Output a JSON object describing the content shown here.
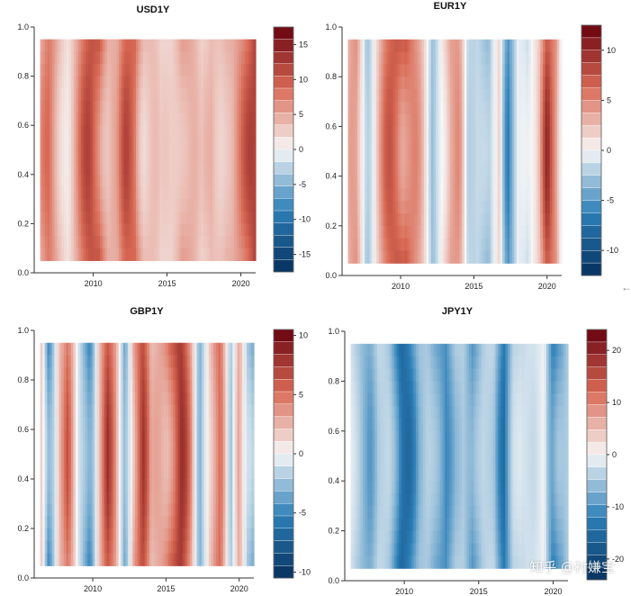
{
  "chart_data": [
    {
      "type": "heatmap",
      "title": "USD1Y",
      "xlabel": "",
      "ylabel": "",
      "xlim": [
        2006,
        2021
      ],
      "ylim": [
        0.0,
        1.0
      ],
      "x_ticks": [
        "2010",
        "2015",
        "2020"
      ],
      "y_ticks": [
        "0.0",
        "0.2",
        "0.4",
        "0.6",
        "0.8",
        "1.0"
      ],
      "colorbar_ticks": [
        "15",
        "10",
        "5",
        "0",
        "-5",
        "-10",
        "-15"
      ],
      "colorbar_range": [
        -17.5,
        17.5
      ],
      "data_extent": {
        "x": [
          2006.4,
          2021
        ],
        "y": [
          0.05,
          0.95
        ]
      },
      "value_profile": {
        "x": [
          2006.4,
          2007.0,
          2007.7,
          2008.3,
          2009.0,
          2009.8,
          2010.4,
          2011.0,
          2011.6,
          2012.2,
          2012.8,
          2013.4,
          2014.0,
          2014.6,
          2015.3,
          2016.0,
          2016.7,
          2017.3,
          2018.0,
          2018.7,
          2019.4,
          2020.0,
          2020.6,
          2021.0
        ],
        "values": [
          6,
          9,
          5,
          3,
          7,
          13,
          15,
          7,
          5,
          11,
          13,
          6,
          4,
          2,
          4,
          8,
          5,
          3,
          6,
          4,
          5,
          9,
          13,
          16
        ]
      }
    },
    {
      "type": "heatmap",
      "title": "EUR1Y",
      "xlabel": "",
      "ylabel": "",
      "xlim": [
        2006,
        2021
      ],
      "ylim": [
        0.0,
        1.0
      ],
      "x_ticks": [
        "2010",
        "2015",
        "2020"
      ],
      "y_ticks": [
        "0.0",
        "0.2",
        "0.4",
        "0.6",
        "0.8",
        "1.0"
      ],
      "colorbar_ticks": [
        "10",
        "5",
        "0",
        "-5",
        "-10"
      ],
      "colorbar_range": [
        -12.5,
        12.5
      ],
      "data_extent": {
        "x": [
          2006.4,
          2021
        ],
        "y": [
          0.05,
          0.95
        ]
      },
      "value_profile": {
        "x": [
          2006.4,
          2007.0,
          2007.7,
          2008.3,
          2009.0,
          2009.8,
          2010.4,
          2011.0,
          2011.6,
          2012.2,
          2012.8,
          2013.4,
          2014.0,
          2014.6,
          2015.3,
          2016.0,
          2016.7,
          2017.3,
          2018.0,
          2018.7,
          2019.4,
          2020.0,
          2020.6,
          2021.0
        ],
        "values": [
          3,
          5,
          -3,
          2,
          6,
          10,
          11,
          6,
          1,
          -4,
          2,
          5,
          4,
          -2,
          -1,
          -5,
          1,
          -6,
          0,
          -3,
          2,
          11,
          6,
          -2
        ]
      }
    },
    {
      "type": "heatmap",
      "title": "GBP1Y",
      "xlabel": "",
      "ylabel": "",
      "xlim": [
        2006,
        2021
      ],
      "ylim": [
        0.0,
        1.0
      ],
      "x_ticks": [
        "2010",
        "2015",
        "2020"
      ],
      "y_ticks": [
        "0.0",
        "0.2",
        "0.4",
        "0.6",
        "0.8",
        "1.0"
      ],
      "colorbar_ticks": [
        "10",
        "5",
        "0",
        "-5",
        "-10"
      ],
      "colorbar_range": [
        -10.5,
        10.5
      ],
      "data_extent": {
        "x": [
          2006.4,
          2021
        ],
        "y": [
          0.05,
          0.95
        ]
      },
      "value_profile": {
        "x": [
          2006.4,
          2007.0,
          2007.7,
          2008.3,
          2009.0,
          2009.8,
          2010.4,
          2011.0,
          2011.6,
          2012.2,
          2012.8,
          2013.4,
          2014.0,
          2014.6,
          2015.3,
          2016.0,
          2016.7,
          2017.3,
          2018.0,
          2018.7,
          2019.4,
          2020.0,
          2020.6,
          2021.0
        ],
        "values": [
          2,
          -7,
          4,
          6,
          -2,
          -6,
          3,
          7,
          3,
          -4,
          5,
          8,
          2,
          5,
          8,
          9,
          4,
          -3,
          2,
          6,
          -2,
          5,
          -4,
          -6
        ]
      }
    },
    {
      "type": "heatmap",
      "title": "JPY1Y",
      "xlabel": "",
      "ylabel": "",
      "xlim": [
        2006,
        2021
      ],
      "ylim": [
        0.0,
        1.0
      ],
      "x_ticks": [
        "2010",
        "2015",
        "2020"
      ],
      "y_ticks": [
        "0.0",
        "0.2",
        "0.4",
        "0.6",
        "0.8",
        "1.0"
      ],
      "colorbar_ticks": [
        "20",
        "10",
        "0",
        "-10",
        "-20"
      ],
      "colorbar_range": [
        -24,
        24
      ],
      "data_extent": {
        "x": [
          2006.4,
          2021
        ],
        "y": [
          0.05,
          0.95
        ]
      },
      "value_profile": {
        "x": [
          2006.4,
          2007.0,
          2007.7,
          2008.3,
          2009.0,
          2009.8,
          2010.4,
          2011.0,
          2011.6,
          2012.2,
          2012.8,
          2013.4,
          2014.0,
          2014.6,
          2015.3,
          2016.0,
          2016.7,
          2017.3,
          2018.0,
          2018.7,
          2019.4,
          2020.0,
          2020.6,
          2021.0
        ],
        "values": [
          -4,
          -6,
          -9,
          -5,
          -7,
          -20,
          -15,
          -8,
          -6,
          -10,
          -14,
          -7,
          -5,
          -12,
          -6,
          -5,
          -16,
          -4,
          -5,
          -3,
          1,
          -17,
          -12,
          -6
        ]
      }
    }
  ],
  "colors": {
    "neg_dark": "#05305e",
    "neg_mid": "#2c7fb8",
    "neutral": "#f7f7f7",
    "pos_mid": "#d96a55",
    "pos_dark": "#67000d"
  },
  "watermark": "知乎 @衬嫌宝",
  "side_icon": "arrow-left-icon"
}
